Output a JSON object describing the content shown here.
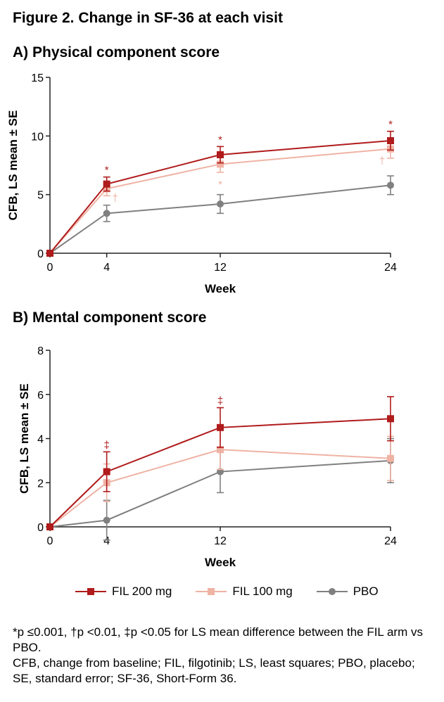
{
  "figure_title": "Figure 2. Change in SF-36 at each visit",
  "legend": [
    {
      "label": "FIL 200 mg",
      "color": "#b01b1b",
      "marker": "square"
    },
    {
      "label": "FIL 100 mg",
      "color": "#efb3a4",
      "marker": "square"
    },
    {
      "label": "PBO",
      "color": "#808080",
      "marker": "circle"
    }
  ],
  "footnotes": [
    "*p ≤0.001, †p <0.01, ‡p <0.05 for LS mean difference between the FIL arm vs PBO.",
    "CFB, change from baseline; FIL, filgotinib; LS, least squares; PBO, placebo; SE, standard error; SF-36, Short-Form 36."
  ],
  "chart_data": [
    {
      "type": "line",
      "title": "A) Physical component score",
      "xlabel": "Week",
      "ylabel": "CFB, LS mean ± SE",
      "x": [
        0,
        4,
        12,
        24
      ],
      "xticks": [
        "0",
        "4",
        "12",
        "24"
      ],
      "yticks": [
        "0",
        "5",
        "10",
        "15"
      ],
      "ylim": [
        0,
        15
      ],
      "series": [
        {
          "name": "FIL 200 mg",
          "color": "#b01b1b",
          "marker": "square",
          "values": [
            0,
            5.9,
            8.4,
            9.6
          ],
          "se": [
            0,
            0.6,
            0.7,
            0.8
          ],
          "annotations": [
            null,
            "*",
            "*",
            "*"
          ],
          "ann_color": "#b01b1b"
        },
        {
          "name": "FIL 100 mg",
          "color": "#efb3a4",
          "marker": "square",
          "values": [
            0,
            5.5,
            7.6,
            8.9
          ],
          "se": [
            0,
            0.6,
            0.7,
            0.8
          ],
          "annotations": [
            null,
            "†",
            "*",
            "†"
          ],
          "ann_color": "#efb3a4"
        },
        {
          "name": "PBO",
          "color": "#808080",
          "marker": "circle",
          "values": [
            0,
            3.4,
            4.2,
            5.8
          ],
          "se": [
            0,
            0.7,
            0.8,
            0.8
          ],
          "annotations": [
            null,
            null,
            null,
            null
          ],
          "ann_color": "#808080"
        }
      ]
    },
    {
      "type": "line",
      "title": "B) Mental component score",
      "xlabel": "Week",
      "ylabel": "CFB, LS mean  ± SE",
      "x": [
        0,
        4,
        12,
        24
      ],
      "xticks": [
        "0",
        "4",
        "12",
        "24"
      ],
      "yticks": [
        "0",
        "2",
        "4",
        "6",
        "8"
      ],
      "ylim": [
        0,
        8
      ],
      "series": [
        {
          "name": "FIL 200 mg",
          "color": "#b01b1b",
          "marker": "square",
          "values": [
            0,
            2.5,
            4.5,
            4.9
          ],
          "se": [
            0,
            0.9,
            0.9,
            1.0
          ],
          "annotations": [
            null,
            "‡",
            "‡",
            null
          ],
          "ann_color": "#b01b1b"
        },
        {
          "name": "FIL 100 mg",
          "color": "#efb3a4",
          "marker": "square",
          "values": [
            0,
            2.0,
            3.5,
            3.1
          ],
          "se": [
            0,
            0.85,
            0.9,
            1.0
          ],
          "annotations": [
            null,
            null,
            null,
            null
          ],
          "ann_color": "#efb3a4"
        },
        {
          "name": "PBO",
          "color": "#808080",
          "marker": "circle",
          "values": [
            0,
            0.3,
            2.5,
            3.0
          ],
          "se": [
            0,
            0.9,
            0.95,
            1.0
          ],
          "annotations": [
            null,
            null,
            null,
            null
          ],
          "ann_color": "#808080"
        }
      ]
    }
  ]
}
